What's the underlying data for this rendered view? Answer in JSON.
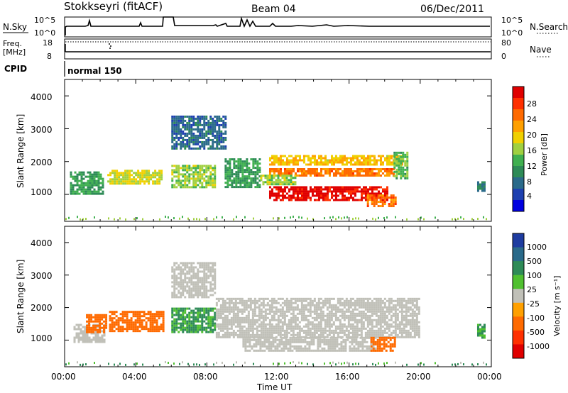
{
  "header": {
    "radar": "Stokkseyri (fitACF)",
    "beam": "Beam 04",
    "date": "06/Dec/2011"
  },
  "top_panels": {
    "nsky_label": "N.Sky",
    "nsearch_label": "N.Search",
    "count_ticks": [
      "10^5",
      "10^0"
    ],
    "freq_label_1": "Freq.",
    "freq_label_2": "[MHz]",
    "freq_ticks": [
      "18",
      "8"
    ],
    "nave_ticks": [
      "80",
      "0"
    ],
    "nave_label": "Nave",
    "cpid_label": "CPID",
    "cpid_value": "normal 150"
  },
  "axes": {
    "ylabel": "Slant Range [km]",
    "yticks": [
      "4000",
      "3000",
      "2000",
      "1000"
    ],
    "xticks": [
      "00:00",
      "04:00",
      "08:00",
      "12:00",
      "16:00",
      "20:00",
      "00:00"
    ],
    "xlabel": "Time UT"
  },
  "colorbars": {
    "power_label": "Power [dB]",
    "power_ticks": [
      "28",
      "24",
      "20",
      "16",
      "12",
      "8",
      "4"
    ],
    "power_colors": [
      "#e00000",
      "#ff3000",
      "#ff6a00",
      "#ffa000",
      "#f0d000",
      "#a0d040",
      "#40b050",
      "#2e8b57",
      "#2a6a8a",
      "#1e40b0",
      "#0000e0"
    ],
    "velocity_label": "Velocity [m s⁻¹]",
    "velocity_ticks": [
      "1000",
      "500",
      "100",
      "25",
      "-25",
      "-100",
      "-500",
      "-1000"
    ],
    "velocity_colors": [
      "#1e3ca0",
      "#2a6a8a",
      "#2e8b57",
      "#50c030",
      "#c0c0b8",
      "#ffa000",
      "#ff6a00",
      "#ff3000",
      "#e00000"
    ]
  },
  "chart_data": [
    {
      "type": "line",
      "title": "N.Sky / N.Search",
      "x": [
        "00:00",
        "01:00",
        "02:00",
        "04:00",
        "05:30",
        "06:00",
        "08:00",
        "10:00",
        "12:00",
        "16:00",
        "20:00",
        "24:00"
      ],
      "note_scale": "log 10^0 - 10^5",
      "series": [
        {
          "name": "N.Sky",
          "values": [
            1.0,
            3.0,
            1.5,
            1.5,
            3.3,
            1.5,
            1.3,
            2.0,
            1.6,
            1.4,
            1.3,
            1.3
          ]
        }
      ]
    },
    {
      "type": "line",
      "title": "Freq. [MHz] / Nave",
      "ylim": [
        8,
        18
      ],
      "series": [
        {
          "name": "Freq.",
          "values": [
            10.2,
            10.2
          ]
        },
        {
          "name": "Nave",
          "values": [
            17.5,
            17.5
          ]
        }
      ]
    },
    {
      "type": "heatmap",
      "title": "Power [dB]",
      "xlabel": "Time UT",
      "ylabel": "Slant Range [km]",
      "xlim": [
        0,
        24
      ],
      "ylim": [
        180,
        4500
      ],
      "colorbar_range": [
        0,
        30
      ],
      "regions": [
        {
          "t0": 0.3,
          "t1": 2.2,
          "r0": 1050,
          "r1": 1700,
          "value": 10
        },
        {
          "t0": 2.4,
          "t1": 5.5,
          "r0": 1300,
          "r1": 1750,
          "value": 16
        },
        {
          "t0": 6.0,
          "t1": 8.5,
          "r0": 1250,
          "r1": 1900,
          "value": 14
        },
        {
          "t0": 9.0,
          "t1": 11.0,
          "r0": 1200,
          "r1": 2100,
          "value": 10
        },
        {
          "t0": 11.5,
          "t1": 19.0,
          "r0": 1900,
          "r1": 2200,
          "value": 18
        },
        {
          "t0": 11.5,
          "t1": 18.5,
          "r0": 1550,
          "r1": 1800,
          "value": 22
        },
        {
          "t0": 11.5,
          "t1": 18.2,
          "r0": 850,
          "r1": 1250,
          "value": 28
        },
        {
          "t0": 17.0,
          "t1": 18.6,
          "r0": 650,
          "r1": 1000,
          "value": 22
        },
        {
          "t0": 11.0,
          "t1": 13.0,
          "r0": 1300,
          "r1": 1600,
          "value": 14
        },
        {
          "t0": 18.5,
          "t1": 19.3,
          "r0": 1500,
          "r1": 2300,
          "value": 12
        },
        {
          "t0": 6.0,
          "t1": 9.0,
          "r0": 2400,
          "r1": 3400,
          "value": 6
        },
        {
          "t0": 23.2,
          "t1": 23.6,
          "r0": 1100,
          "r1": 1400,
          "value": 8
        }
      ]
    },
    {
      "type": "heatmap",
      "title": "Velocity [m s⁻¹]",
      "xlabel": "Time UT",
      "ylabel": "Slant Range [km]",
      "xlim": [
        0,
        24
      ],
      "ylim": [
        180,
        4500
      ],
      "regions": [
        {
          "t0": 0.5,
          "t1": 2.2,
          "r0": 950,
          "r1": 1500,
          "value": 10
        },
        {
          "t0": 1.2,
          "t1": 2.3,
          "r0": 1250,
          "r1": 1800,
          "value": -120
        },
        {
          "t0": 2.5,
          "t1": 5.5,
          "r0": 1300,
          "r1": 1900,
          "value": -110
        },
        {
          "t0": 6.0,
          "t1": 8.5,
          "r0": 1250,
          "r1": 2000,
          "value": 60
        },
        {
          "t0": 6.0,
          "t1": 8.5,
          "r0": 2300,
          "r1": 3400,
          "value": 0
        },
        {
          "t0": 8.5,
          "t1": 20.0,
          "r0": 1100,
          "r1": 2300,
          "value": 0
        },
        {
          "t0": 10.0,
          "t1": 17.5,
          "r0": 700,
          "r1": 1100,
          "value": 0
        },
        {
          "t0": 17.2,
          "t1": 18.6,
          "r0": 650,
          "r1": 1100,
          "value": -300
        },
        {
          "t0": 23.2,
          "t1": 23.6,
          "r0": 1100,
          "r1": 1500,
          "value": 60
        }
      ]
    }
  ]
}
